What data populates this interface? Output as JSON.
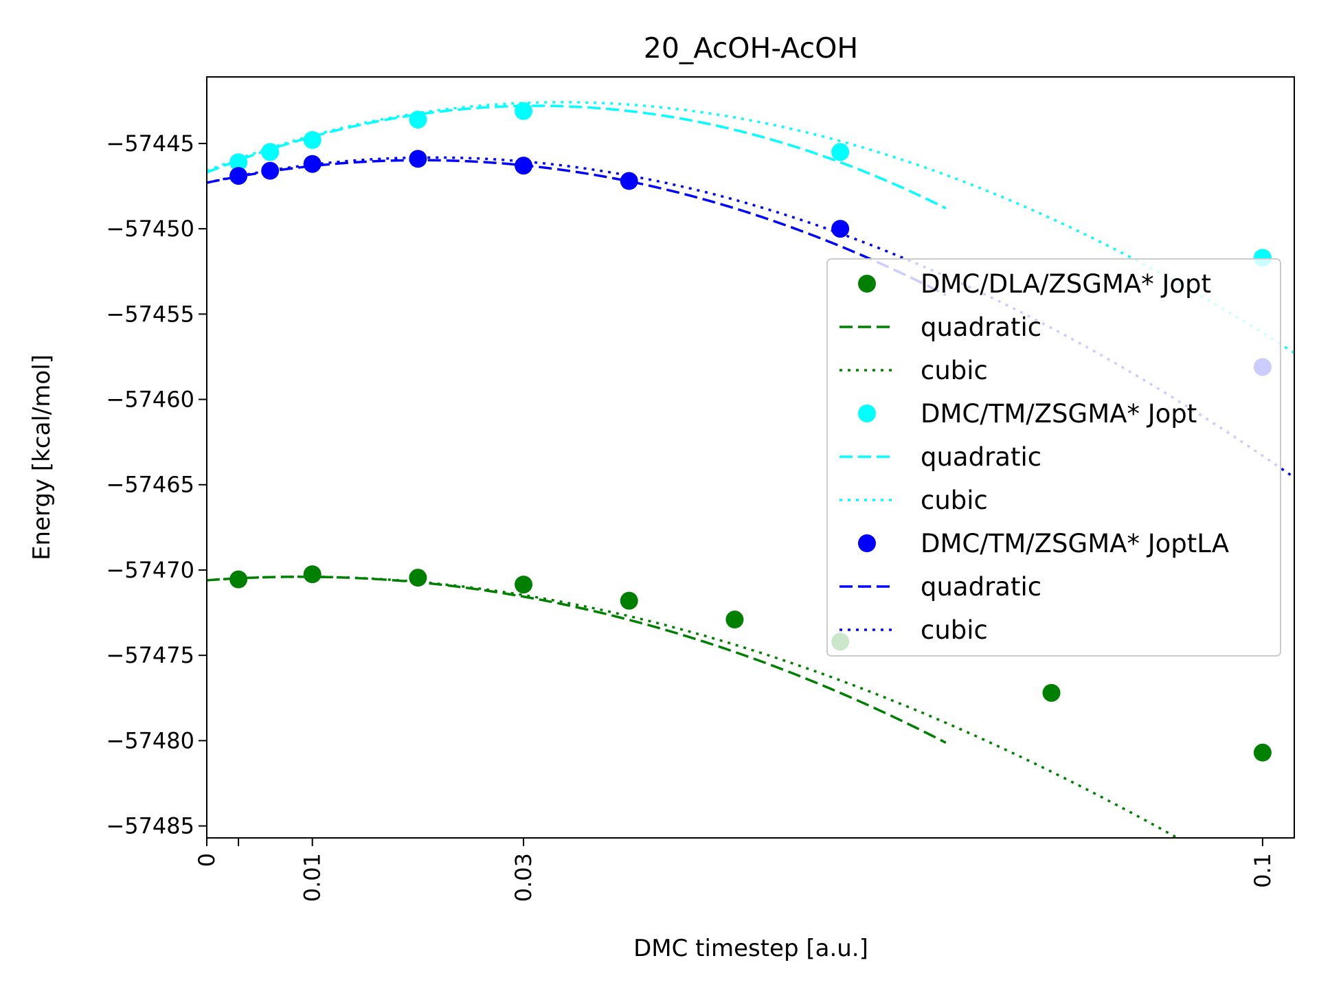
{
  "chart_data": {
    "type": "line",
    "title": "20_AcOH-AcOH",
    "xlabel": "DMC timestep [a.u.]",
    "ylabel": "Energy [kcal/mol]",
    "xlim": [
      0,
      0.103
    ],
    "ylim": [
      -57485.7,
      -57441.1
    ],
    "xticks": [
      {
        "value": 0,
        "label": "0"
      },
      {
        "value": 0.003,
        "label": ""
      },
      {
        "value": 0.01,
        "label": "0.01"
      },
      {
        "value": 0.03,
        "label": "0.03"
      },
      {
        "value": 0.1,
        "label": "0.1"
      }
    ],
    "yticks": [
      {
        "value": -57445,
        "label": "−57445"
      },
      {
        "value": -57450,
        "label": "−57450"
      },
      {
        "value": -57455,
        "label": "−57455"
      },
      {
        "value": -57460,
        "label": "−57460"
      },
      {
        "value": -57465,
        "label": "−57465"
      },
      {
        "value": -57470,
        "label": "−57470"
      },
      {
        "value": -57475,
        "label": "−57475"
      },
      {
        "value": -57480,
        "label": "−57480"
      },
      {
        "value": -57485,
        "label": "−57485"
      }
    ],
    "grid": false,
    "legend_position": "center-right",
    "series": [
      {
        "name": "DMC/DLA/ZSGMA* Jopt",
        "color": "#008000",
        "x": [
          0.003,
          0.01,
          0.02,
          0.03,
          0.04,
          0.05,
          0.06,
          0.08,
          0.1
        ],
        "y": [
          -57470.55,
          -57470.25,
          -57470.45,
          -57470.85,
          -57471.8,
          -57472.9,
          -57474.2,
          -57477.2,
          -57480.7
        ],
        "fits": [
          {
            "name": "quadratic",
            "style": "dashed",
            "xmax": 0.07,
            "coef": [
              -57470.6,
              46,
              -2600
            ]
          },
          {
            "name": "cubic",
            "style": "dotted",
            "xmax": 0.103,
            "coef": [
              -57470.6,
              46,
              -2600,
              3400
            ]
          }
        ]
      },
      {
        "name": "DMC/TM/ZSGMA* Jopt",
        "color": "#00ffff",
        "x": [
          0.003,
          0.006,
          0.01,
          0.02,
          0.03,
          0.06,
          0.1
        ],
        "y": [
          -57446.1,
          -57445.5,
          -57444.8,
          -57443.6,
          -57443.1,
          -57445.5,
          -57451.7
        ],
        "fits": [
          {
            "name": "quadratic",
            "style": "dashed",
            "xmax": 0.07,
            "coef": [
              -57446.7,
              250,
              -4000
            ]
          },
          {
            "name": "cubic",
            "style": "dotted",
            "xmax": 0.103,
            "coef": [
              -57446.6,
              245,
              -3900,
              5000
            ]
          }
        ]
      },
      {
        "name": "DMC/TM/ZSGMA* JoptLA",
        "color": "#0000ff",
        "x": [
          0.003,
          0.006,
          0.01,
          0.02,
          0.03,
          0.04,
          0.06,
          0.1
        ],
        "y": [
          -57446.9,
          -57446.6,
          -57446.2,
          -57445.9,
          -57446.3,
          -57447.2,
          -57450.0,
          -57458.1
        ],
        "fits": [
          {
            "name": "quadratic",
            "style": "dashed",
            "xmax": 0.07,
            "coef": [
              -57447.3,
              130,
              -3200
            ]
          },
          {
            "name": "cubic",
            "style": "dotted",
            "xmax": 0.103,
            "coef": [
              -57447.3,
              140,
              -3400,
              4000
            ]
          }
        ]
      }
    ]
  }
}
